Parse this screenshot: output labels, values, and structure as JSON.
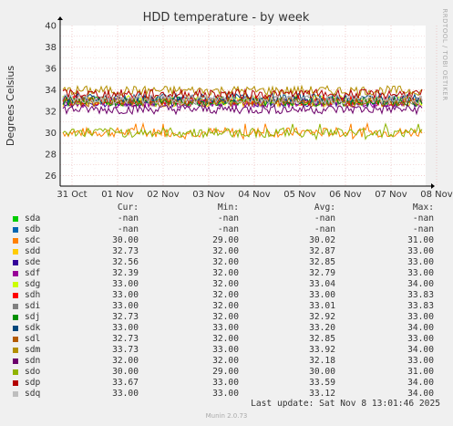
{
  "chart_data": {
    "type": "line",
    "title": "HDD temperature - by week",
    "ylabel": "Degrees Celsius",
    "side_label": "RRDTOOL / TOBI OETIKER",
    "ylim": [
      25,
      40
    ],
    "y_ticks": [
      "26",
      "28",
      "30",
      "32",
      "34",
      "36",
      "38",
      "40"
    ],
    "x_ticks": [
      "31 Oct",
      "01 Nov",
      "02 Nov",
      "03 Nov",
      "04 Nov",
      "05 Nov",
      "06 Nov",
      "07 Nov",
      "08 Nov"
    ],
    "grid": true,
    "series": [
      {
        "name": "sda",
        "color": "#00cc00",
        "base": null
      },
      {
        "name": "sdb",
        "color": "#0066b3",
        "base": null
      },
      {
        "name": "sdc",
        "color": "#ff8000",
        "base": 30.02
      },
      {
        "name": "sdd",
        "color": "#ffcc00",
        "base": 32.87
      },
      {
        "name": "sde",
        "color": "#330099",
        "base": 32.85
      },
      {
        "name": "sdf",
        "color": "#990099",
        "base": 32.79
      },
      {
        "name": "sdg",
        "color": "#ccff00",
        "base": 33.04
      },
      {
        "name": "sdh",
        "color": "#ff0000",
        "base": 33.0
      },
      {
        "name": "sdi",
        "color": "#808080",
        "base": 33.01
      },
      {
        "name": "sdj",
        "color": "#008f00",
        "base": 32.92
      },
      {
        "name": "sdk",
        "color": "#00487d",
        "base": 33.2
      },
      {
        "name": "sdl",
        "color": "#b35a00",
        "base": 32.85
      },
      {
        "name": "sdm",
        "color": "#b38f00",
        "base": 33.92
      },
      {
        "name": "sdn",
        "color": "#6b006b",
        "base": 32.18
      },
      {
        "name": "sdo",
        "color": "#8fb300",
        "base": 30.0
      },
      {
        "name": "sdp",
        "color": "#b30000",
        "base": 33.59
      },
      {
        "name": "sdq",
        "color": "#bebebe",
        "base": 33.12
      }
    ]
  },
  "legend": {
    "headers": {
      "cur": "Cur:",
      "min": "Min:",
      "avg": "Avg:",
      "max": "Max:"
    },
    "rows": [
      {
        "name": "sda",
        "color": "#00cc00",
        "cur": "-nan",
        "min": "-nan",
        "avg": "-nan",
        "max": "-nan"
      },
      {
        "name": "sdb",
        "color": "#0066b3",
        "cur": "-nan",
        "min": "-nan",
        "avg": "-nan",
        "max": "-nan"
      },
      {
        "name": "sdc",
        "color": "#ff8000",
        "cur": "30.00",
        "min": "29.00",
        "avg": "30.02",
        "max": "31.00"
      },
      {
        "name": "sdd",
        "color": "#ffcc00",
        "cur": "32.73",
        "min": "32.00",
        "avg": "32.87",
        "max": "33.00"
      },
      {
        "name": "sde",
        "color": "#330099",
        "cur": "32.56",
        "min": "32.00",
        "avg": "32.85",
        "max": "33.00"
      },
      {
        "name": "sdf",
        "color": "#990099",
        "cur": "32.39",
        "min": "32.00",
        "avg": "32.79",
        "max": "33.00"
      },
      {
        "name": "sdg",
        "color": "#ccff00",
        "cur": "33.00",
        "min": "32.00",
        "avg": "33.04",
        "max": "34.00"
      },
      {
        "name": "sdh",
        "color": "#ff0000",
        "cur": "33.00",
        "min": "32.00",
        "avg": "33.00",
        "max": "33.83"
      },
      {
        "name": "sdi",
        "color": "#808080",
        "cur": "33.00",
        "min": "32.00",
        "avg": "33.01",
        "max": "33.83"
      },
      {
        "name": "sdj",
        "color": "#008f00",
        "cur": "32.73",
        "min": "32.00",
        "avg": "32.92",
        "max": "33.00"
      },
      {
        "name": "sdk",
        "color": "#00487d",
        "cur": "33.00",
        "min": "33.00",
        "avg": "33.20",
        "max": "34.00"
      },
      {
        "name": "sdl",
        "color": "#b35a00",
        "cur": "32.73",
        "min": "32.00",
        "avg": "32.85",
        "max": "33.00"
      },
      {
        "name": "sdm",
        "color": "#b38f00",
        "cur": "33.73",
        "min": "33.00",
        "avg": "33.92",
        "max": "34.00"
      },
      {
        "name": "sdn",
        "color": "#6b006b",
        "cur": "32.00",
        "min": "32.00",
        "avg": "32.18",
        "max": "33.00"
      },
      {
        "name": "sdo",
        "color": "#8fb300",
        "cur": "30.00",
        "min": "29.00",
        "avg": "30.00",
        "max": "31.00"
      },
      {
        "name": "sdp",
        "color": "#b30000",
        "cur": "33.67",
        "min": "33.00",
        "avg": "33.59",
        "max": "34.00"
      },
      {
        "name": "sdq",
        "color": "#bebebe",
        "cur": "33.00",
        "min": "33.00",
        "avg": "33.12",
        "max": "34.00"
      }
    ]
  },
  "last_update": "Last update: Sat Nov  8 13:01:46 2025",
  "footer": "Munin 2.0.73"
}
